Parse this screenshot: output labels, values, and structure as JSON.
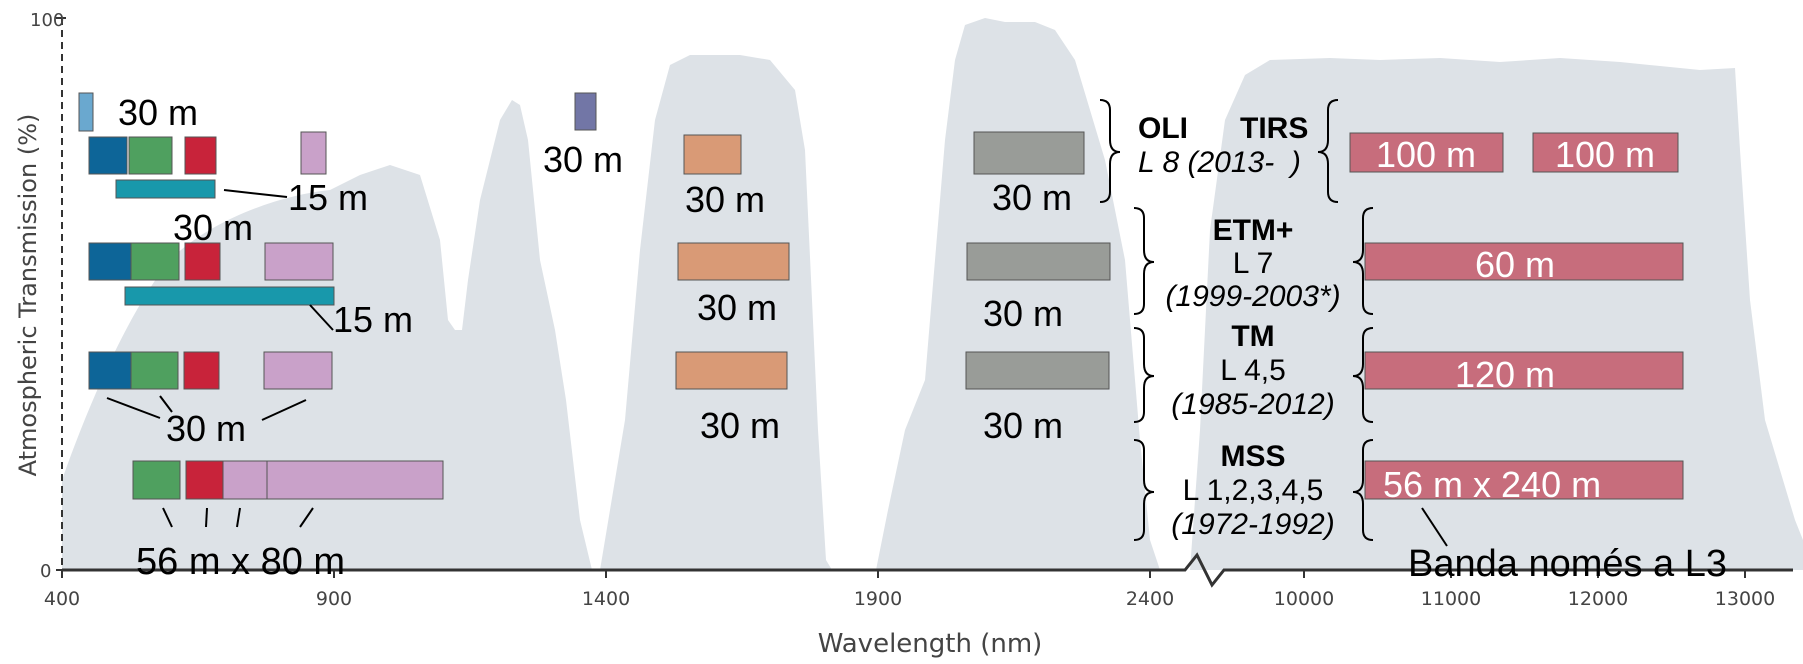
{
  "axes": {
    "y_label": "Atmospheric Transmission (%)",
    "y_ticks": [
      "100",
      "0"
    ],
    "x_label": "Wavelength (nm)",
    "x_ticks": [
      "400",
      "900",
      "1400",
      "1900",
      "2400",
      "10000",
      "11000",
      "12000",
      "13000"
    ]
  },
  "sensors": {
    "oli": {
      "name": "OLI",
      "tirs": "TIRS",
      "mission": "L 8 (2013-  )",
      "res_coastal": "30 m",
      "res_pan": "15 m",
      "res_vnir": "30 m",
      "res_cirrus": "30 m",
      "res_swir1": "30 m",
      "res_swir2": "30 m",
      "res_tir1": "100 m",
      "res_tir2": "100 m"
    },
    "etm": {
      "name": "ETM+",
      "mission": "L 7",
      "years": "(1999-2003*)",
      "res_vnir": "30 m",
      "res_pan": "15 m",
      "res_swir1": "30 m",
      "res_swir2": "30 m",
      "res_tir": "60 m"
    },
    "tm": {
      "name": "TM",
      "mission": "L 4,5",
      "years": "(1985-2012)",
      "res_vnir": "30 m",
      "res_swir1": "30 m",
      "res_swir2": "30 m",
      "res_tir": "120 m"
    },
    "mss": {
      "name": "MSS",
      "mission": "L 1,2,3,4,5",
      "years": "(1972-1992)",
      "res_vnir": "56 m x 80 m",
      "res_tir": "56 m x 240 m",
      "note": "Banda només a L3"
    }
  },
  "colors": {
    "transmission": "#dde2e7",
    "coastal": "#6aa8cf",
    "blue": "#0d6598",
    "green": "#4fa05f",
    "red": "#c8233a",
    "nir": "#c9a1c9",
    "pan": "#1898ab",
    "cirrus": "#7276a6",
    "swir1": "#d99a76",
    "swir2": "#999c98",
    "tir": "#c76d7c"
  }
}
